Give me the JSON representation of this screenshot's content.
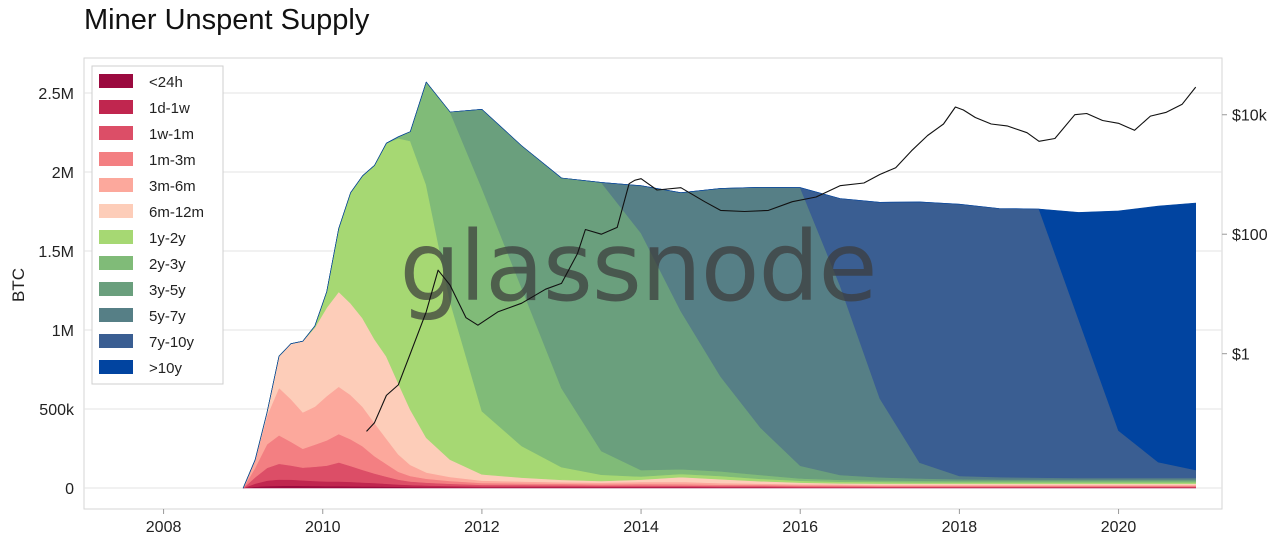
{
  "chart_data": {
    "type": "area",
    "title": "Miner Unspent Supply",
    "ylabel": "BTC",
    "ylabel_right": "",
    "watermark": "glassnode",
    "x_range": [
      2007.0,
      2021.3
    ],
    "y_range": [
      0,
      2600000
    ],
    "x_ticks": [
      {
        "value": 2008,
        "label": "2008"
      },
      {
        "value": 2010,
        "label": "2010"
      },
      {
        "value": 2012,
        "label": "2012"
      },
      {
        "value": 2014,
        "label": "2014"
      },
      {
        "value": 2016,
        "label": "2016"
      },
      {
        "value": 2018,
        "label": "2018"
      },
      {
        "value": 2020,
        "label": "2020"
      }
    ],
    "y_ticks": [
      {
        "value": 0,
        "label": "0"
      },
      {
        "value": 500000,
        "label": "500k"
      },
      {
        "value": 1000000,
        "label": "1M"
      },
      {
        "value": 1500000,
        "label": "1.5M"
      },
      {
        "value": 2000000,
        "label": "2M"
      },
      {
        "value": 2500000,
        "label": "2.5M"
      }
    ],
    "price_scale": "log",
    "price_ticks": [
      {
        "value": 1,
        "label": "$1"
      },
      {
        "value": 100,
        "label": "$100"
      },
      {
        "value": 10000,
        "label": "$10k"
      }
    ],
    "price_log_range": [
      -2.6,
      4.95
    ],
    "grid": true,
    "legend_position": "top-left",
    "x": [
      2009.0,
      2009.15,
      2009.3,
      2009.45,
      2009.6,
      2009.75,
      2009.9,
      2010.05,
      2010.2,
      2010.35,
      2010.5,
      2010.65,
      2010.8,
      2010.95,
      2011.1,
      2011.3,
      2011.6,
      2012.0,
      2012.5,
      2013.0,
      2013.5,
      2014.0,
      2014.5,
      2015.0,
      2015.5,
      2016.0,
      2016.5,
      2017.0,
      2017.5,
      2018.0,
      2018.5,
      2019.0,
      2019.5,
      2020.0,
      2020.5,
      2020.97
    ],
    "series": [
      {
        "name": "<24h",
        "color": "#9b0a3f",
        "values": [
          0,
          8000,
          12000,
          14000,
          15000,
          14000,
          13000,
          12000,
          12000,
          11000,
          10000,
          10000,
          9000,
          8000,
          7000,
          6000,
          5000,
          4000,
          4000,
          4000,
          4000,
          3000,
          3000,
          3000,
          3000,
          2000,
          2000,
          2000,
          2000,
          2000,
          2000,
          2000,
          2000,
          2000,
          2000,
          2000
        ]
      },
      {
        "name": "1d-1w",
        "color": "#c0264f",
        "values": [
          0,
          20000,
          35000,
          40000,
          38000,
          35000,
          32000,
          30000,
          30000,
          28000,
          25000,
          22000,
          18000,
          15000,
          12000,
          10000,
          8000,
          6000,
          6000,
          6000,
          5000,
          5000,
          5000,
          4000,
          4000,
          4000,
          3000,
          3000,
          3000,
          3000,
          3000,
          3000,
          3000,
          3000,
          3000,
          3000
        ]
      },
      {
        "name": "1w-1m",
        "color": "#dc4e67",
        "values": [
          0,
          40000,
          80000,
          100000,
          90000,
          80000,
          90000,
          100000,
          120000,
          100000,
          80000,
          60000,
          45000,
          30000,
          22000,
          18000,
          14000,
          10000,
          9000,
          8000,
          7000,
          8000,
          7000,
          6000,
          6000,
          5000,
          5000,
          4000,
          4000,
          4000,
          4000,
          4000,
          4000,
          4000,
          4000,
          4000
        ]
      },
      {
        "name": "1m-3m",
        "color": "#f37f82",
        "values": [
          0,
          60000,
          150000,
          180000,
          150000,
          120000,
          140000,
          160000,
          180000,
          170000,
          150000,
          110000,
          80000,
          50000,
          35000,
          25000,
          18000,
          12000,
          10000,
          9000,
          8000,
          10000,
          10000,
          8000,
          7000,
          6000,
          6000,
          5000,
          5000,
          5000,
          5000,
          5000,
          5000,
          5000,
          5000,
          5000
        ]
      },
      {
        "name": "3m-6m",
        "color": "#fca89c",
        "values": [
          0,
          50000,
          180000,
          300000,
          270000,
          230000,
          240000,
          280000,
          300000,
          280000,
          250000,
          210000,
          160000,
          110000,
          70000,
          40000,
          25000,
          15000,
          12000,
          10000,
          10000,
          12000,
          14000,
          10000,
          8000,
          7000,
          6000,
          6000,
          6000,
          6000,
          6000,
          6000,
          6000,
          6000,
          6000,
          6000
        ]
      },
      {
        "name": "6m-12m",
        "color": "#fdcdb9",
        "values": [
          0,
          0,
          20000,
          200000,
          350000,
          450000,
          500000,
          560000,
          600000,
          580000,
          560000,
          530000,
          520000,
          450000,
          350000,
          220000,
          110000,
          40000,
          25000,
          15000,
          10000,
          15000,
          30000,
          25000,
          15000,
          10000,
          8000,
          8000,
          8000,
          8000,
          8000,
          8000,
          8000,
          8000,
          8000,
          8000
        ]
      },
      {
        "name": "1y-2y",
        "color": "#a6d873",
        "values": [
          0,
          0,
          0,
          0,
          0,
          0,
          10000,
          100000,
          400000,
          700000,
          900000,
          1100000,
          1350000,
          1550000,
          1700000,
          1600000,
          1000000,
          400000,
          200000,
          80000,
          40000,
          20000,
          20000,
          20000,
          15000,
          12000,
          10000,
          10000,
          8000,
          8000,
          8000,
          8000,
          8000,
          8000,
          8000,
          8000
        ]
      },
      {
        "name": "2y-3y",
        "color": "#80bb78",
        "values": [
          0,
          0,
          0,
          0,
          0,
          0,
          0,
          0,
          0,
          0,
          0,
          0,
          0,
          10000,
          60000,
          650000,
          1200000,
          1410000,
          1000000,
          500000,
          150000,
          40000,
          30000,
          30000,
          25000,
          15000,
          12000,
          10000,
          10000,
          8000,
          8000,
          8000,
          8000,
          8000,
          8000,
          8000
        ]
      },
      {
        "name": "3y-5y",
        "color": "#6a9f7d",
        "values": [
          0,
          0,
          0,
          0,
          0,
          0,
          0,
          0,
          0,
          0,
          0,
          0,
          0,
          0,
          0,
          0,
          0,
          500000,
          900000,
          1330000,
          1700000,
          1500000,
          1000000,
          600000,
          300000,
          80000,
          30000,
          20000,
          15000,
          12000,
          10000,
          10000,
          10000,
          10000,
          10000,
          10000
        ]
      },
      {
        "name": "5y-7y",
        "color": "#567f86",
        "values": [
          0,
          0,
          0,
          0,
          0,
          0,
          0,
          0,
          0,
          0,
          0,
          0,
          0,
          0,
          0,
          0,
          0,
          0,
          0,
          0,
          0,
          300000,
          750000,
          1190000,
          1520000,
          1760000,
          1200000,
          500000,
          100000,
          20000,
          15000,
          12000,
          10000,
          10000,
          10000,
          10000
        ]
      },
      {
        "name": "7y-10y",
        "color": "#3a5e92",
        "values": [
          0,
          0,
          0,
          0,
          0,
          0,
          0,
          0,
          0,
          0,
          0,
          0,
          0,
          0,
          0,
          0,
          0,
          0,
          0,
          0,
          0,
          0,
          0,
          0,
          0,
          0,
          550000,
          1240000,
          1650000,
          1720000,
          1700000,
          1700000,
          1000000,
          300000,
          100000,
          50000
        ]
      },
      {
        "name": ">10y",
        "color": "#0144a0",
        "values": [
          0,
          0,
          0,
          0,
          0,
          0,
          0,
          0,
          0,
          0,
          0,
          0,
          0,
          0,
          0,
          0,
          0,
          0,
          0,
          0,
          0,
          0,
          0,
          0,
          0,
          0,
          0,
          0,
          0,
          0,
          0,
          0,
          680000,
          1390000,
          1620000,
          1690000
        ]
      }
    ],
    "price": {
      "name": "",
      "color": "#111111",
      "x": [
        2010.55,
        2010.65,
        2010.8,
        2010.95,
        2011.1,
        2011.3,
        2011.45,
        2011.6,
        2011.8,
        2011.95,
        2012.2,
        2012.5,
        2012.8,
        2013.0,
        2013.2,
        2013.3,
        2013.5,
        2013.7,
        2013.85,
        2013.92,
        2014.0,
        2014.2,
        2014.5,
        2014.8,
        2015.0,
        2015.3,
        2015.6,
        2015.9,
        2016.2,
        2016.5,
        2016.8,
        2017.0,
        2017.2,
        2017.4,
        2017.6,
        2017.8,
        2017.95,
        2018.05,
        2018.2,
        2018.4,
        2018.6,
        2018.85,
        2019.0,
        2019.2,
        2019.45,
        2019.6,
        2019.8,
        2020.0,
        2020.2,
        2020.4,
        2020.6,
        2020.8,
        2020.97
      ],
      "values": [
        0.05,
        0.07,
        0.2,
        0.3,
        1.0,
        5,
        25,
        14,
        4,
        3,
        5,
        7,
        12,
        15,
        47,
        120,
        100,
        130,
        700,
        800,
        850,
        550,
        600,
        350,
        250,
        240,
        250,
        350,
        420,
        650,
        720,
        1000,
        1300,
        2500,
        4500,
        7000,
        13500,
        12000,
        9000,
        7000,
        6500,
        5000,
        3600,
        4000,
        10000,
        10500,
        8000,
        7200,
        5500,
        9500,
        11000,
        15000,
        29000
      ]
    }
  }
}
